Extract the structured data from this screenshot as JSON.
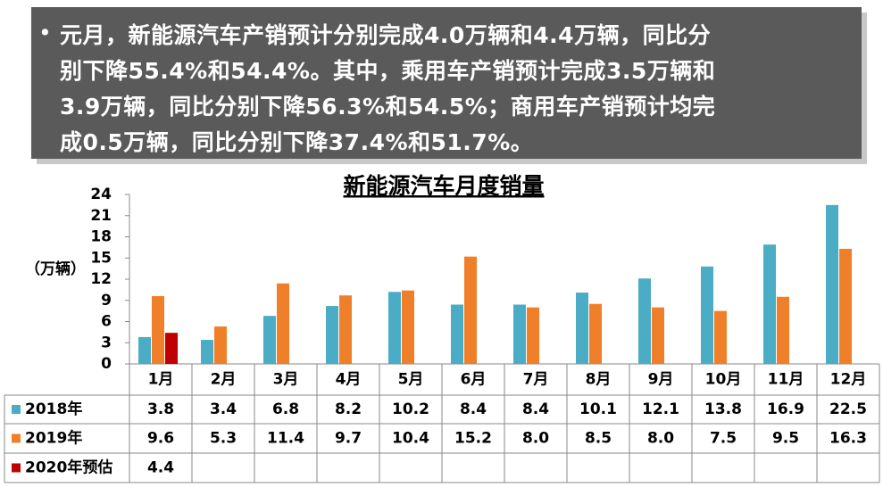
{
  "note_box": {
    "bullet": "•",
    "lines": [
      "元月，新能源汽车产销预计分别完成4.0万辆和4.4万辆，同比分",
      "别下降55.4%和54.4%。其中，乘用车产销预计完成3.5万辆和",
      "3.9万辆，同比分别下降56.3%和54.5%；商用车产销预计均完",
      "成0.5万辆，同比分别下降37.4%和51.7%。"
    ]
  },
  "chart_data": {
    "type": "bar",
    "title": "新能源汽车月度销量",
    "y_label": "（万辆）",
    "categories": [
      "1月",
      "2月",
      "3月",
      "4月",
      "5月",
      "6月",
      "7月",
      "8月",
      "9月",
      "10月",
      "11月",
      "12月"
    ],
    "series": [
      {
        "name": "2018年",
        "color": "#4bacc6",
        "values": [
          3.8,
          3.4,
          6.8,
          8.2,
          10.2,
          8.4,
          8.4,
          10.1,
          12.1,
          13.8,
          16.9,
          22.5
        ],
        "value_labels": [
          "3.8",
          "3.4",
          "6.8",
          "8.2",
          "10.2",
          "8.4",
          "8.4",
          "10.1",
          "12.1",
          "13.8",
          "16.9",
          "22.5"
        ]
      },
      {
        "name": "2019年",
        "color": "#f07f2a",
        "values": [
          9.6,
          5.3,
          11.4,
          9.7,
          10.4,
          15.2,
          8.0,
          8.5,
          8.0,
          7.5,
          9.5,
          16.3
        ],
        "value_labels": [
          "9.6",
          "5.3",
          "11.4",
          "9.7",
          "10.4",
          "15.2",
          "8.0",
          "8.5",
          "8.0",
          "7.5",
          "9.5",
          "16.3"
        ]
      },
      {
        "name": "2020年预估",
        "color": "#c00000",
        "values": [
          4.4,
          null,
          null,
          null,
          null,
          null,
          null,
          null,
          null,
          null,
          null,
          null
        ],
        "value_labels": [
          "4.4",
          null,
          null,
          null,
          null,
          null,
          null,
          null,
          null,
          null,
          null,
          null
        ]
      }
    ],
    "ylim": [
      0,
      24
    ],
    "yticks": [
      0,
      3,
      6,
      9,
      12,
      15,
      18,
      21,
      24
    ]
  }
}
